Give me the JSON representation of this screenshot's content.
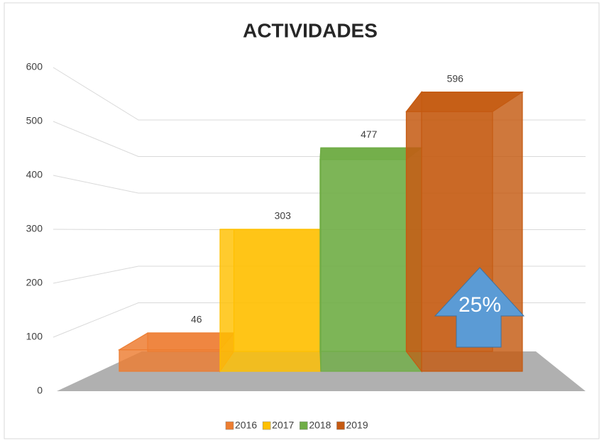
{
  "chart_data": {
    "type": "bar3d",
    "title": "ACTIVIDADES",
    "categories": [
      null
    ],
    "series": [
      {
        "name": "2016",
        "color": "#ED7D31",
        "values": [
          46
        ]
      },
      {
        "name": "2017",
        "color": "#FFC000",
        "values": [
          303
        ]
      },
      {
        "name": "2018",
        "color": "#70AD47",
        "values": [
          477
        ]
      },
      {
        "name": "2019",
        "color": "#C55A11",
        "values": [
          596
        ]
      }
    ],
    "ylim": [
      0,
      600
    ],
    "yticks": [
      0,
      100,
      200,
      300,
      400,
      500,
      600
    ],
    "grid": true,
    "legend": "bottom",
    "annotation": "25%"
  }
}
